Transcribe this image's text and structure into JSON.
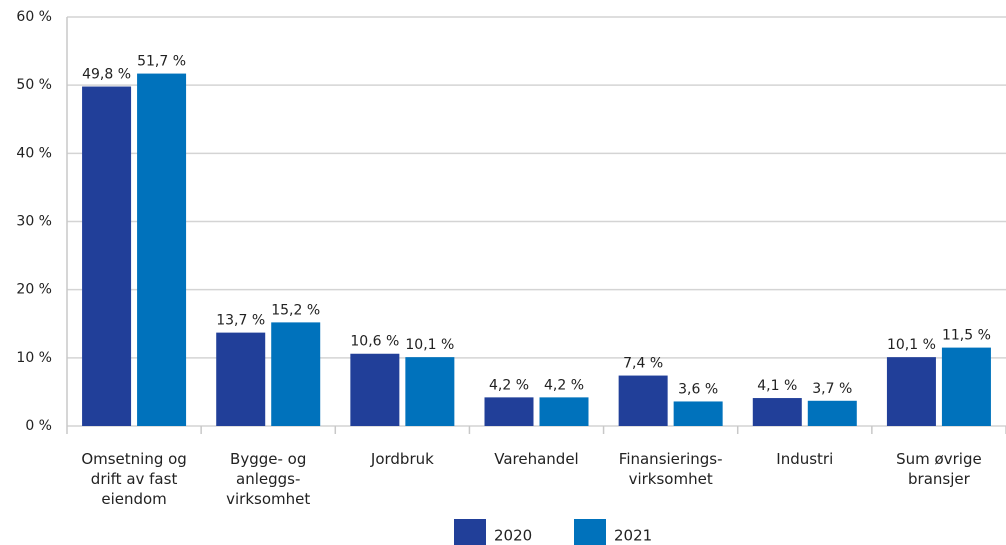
{
  "chart_data": {
    "type": "bar",
    "categories": [
      [
        "Omsetning og",
        "drift av fast",
        "eiendom"
      ],
      [
        "Bygge- og",
        "anleggs-",
        "virksomhet"
      ],
      [
        "Jordbruk"
      ],
      [
        "Varehandel"
      ],
      [
        "Finansierings-",
        "virksomhet"
      ],
      [
        "Industri"
      ],
      [
        "Sum øvrige",
        "bransjer"
      ]
    ],
    "series": [
      {
        "name": "2020",
        "color": "#213f99",
        "values": [
          49.8,
          13.7,
          10.6,
          4.2,
          7.4,
          4.1,
          10.1
        ],
        "value_labels": [
          "49,8 %",
          "13,7 %",
          "10,6 %",
          "4,2 %",
          "7,4 %",
          "4,1 %",
          "10,1 %"
        ]
      },
      {
        "name": "2021",
        "color": "#0072bc",
        "values": [
          51.7,
          15.2,
          10.1,
          4.2,
          3.6,
          3.7,
          11.5
        ],
        "value_labels": [
          "51,7 %",
          "15,2 %",
          "10,1 %",
          "4,2 %",
          "3,6 %",
          "3,7 %",
          "11,5 %"
        ]
      }
    ],
    "ylim": [
      0,
      60
    ],
    "yticks": [
      {
        "value": 0,
        "label": "0 %"
      },
      {
        "value": 10,
        "label": "10 %"
      },
      {
        "value": 20,
        "label": "20 %"
      },
      {
        "value": 30,
        "label": "30 %"
      },
      {
        "value": 40,
        "label": "40 %"
      },
      {
        "value": 50,
        "label": "50 %"
      },
      {
        "value": 60,
        "label": "60 %"
      }
    ],
    "grid": true,
    "legend": "bottom"
  }
}
